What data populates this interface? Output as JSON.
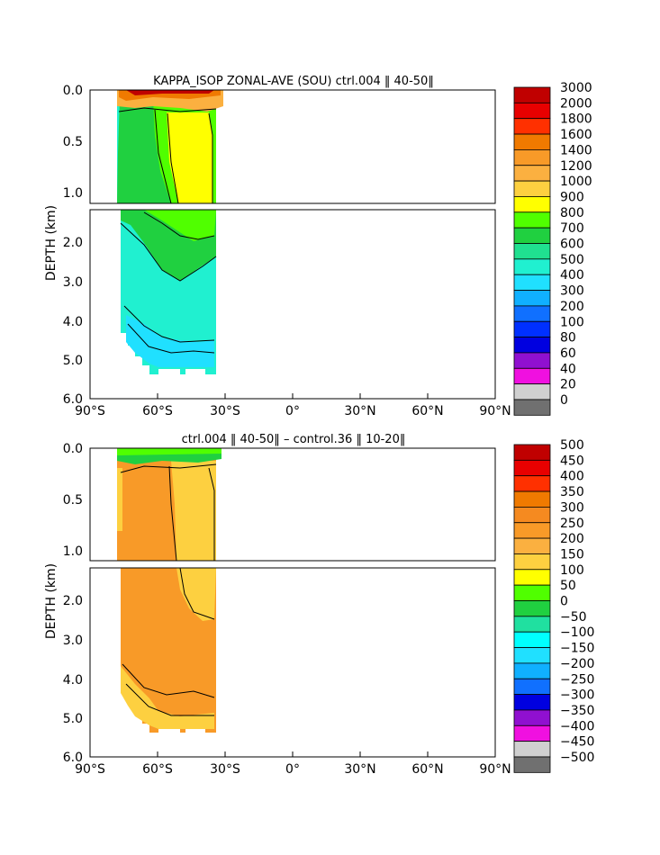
{
  "chart_data": [
    {
      "type": "heatmap",
      "title": "KAPPA_ISOP ZONAL-AVE (SOU) ctrl.004 ‖ 40-50‖",
      "ylabel": "DEPTH (km)",
      "x_ticks": [
        "90°S",
        "60°S",
        "30°S",
        "0°",
        "30°N",
        "60°N",
        "90°N"
      ],
      "y_ticks_upper": [
        "0.0",
        "0.5",
        "1.0"
      ],
      "y_ticks_lower": [
        "2.0",
        "3.0",
        "4.0",
        "5.0",
        "6.0"
      ],
      "xlim": [
        -90,
        90
      ],
      "ylim": [
        6.0,
        0.0
      ],
      "colorbar_levels": [
        "3000",
        "2000",
        "1800",
        "1600",
        "1400",
        "1200",
        "1000",
        "900",
        "800",
        "700",
        "600",
        "500",
        "400",
        "300",
        "200",
        "100",
        "80",
        "60",
        "40",
        "20",
        "0"
      ],
      "colorbar_colors": [
        "#c00000",
        "#e80000",
        "#ff3000",
        "#f07a00",
        "#f89a28",
        "#fbb040",
        "#fdd040",
        "#ffff00",
        "#50ff00",
        "#20d040",
        "#20e090",
        "#20f0d0",
        "#20e0ff",
        "#10b0ff",
        "#1070ff",
        "#0030ff",
        "#0000e0",
        "#9010d0",
        "#f010e0",
        "#d0d0d0",
        "#707070"
      ],
      "regions": [
        {
          "value": 500,
          "lat": [
            -76,
            -34
          ],
          "depth": [
            0.0,
            5.4
          ]
        },
        {
          "value": 600,
          "lat": [
            -75,
            -34
          ],
          "depth": [
            0.1,
            2.4
          ]
        },
        {
          "value": 800,
          "lat": [
            -60,
            -34
          ],
          "depth": [
            0.1,
            1.9
          ]
        },
        {
          "value": 900,
          "lat": [
            -57,
            -36
          ],
          "depth": [
            0.2,
            1.1
          ]
        },
        {
          "value": 1200,
          "lat": [
            -76,
            -34
          ],
          "depth": [
            0.0,
            0.12
          ]
        },
        {
          "value": 3000,
          "lat": [
            -70,
            -34
          ],
          "depth": [
            0.0,
            0.03
          ]
        }
      ]
    },
    {
      "type": "heatmap",
      "title": "ctrl.004 ‖ 40-50‖ – control.36 ‖ 10-20‖",
      "ylabel": "DEPTH (km)",
      "x_ticks": [
        "90°S",
        "60°S",
        "30°S",
        "0°",
        "30°N",
        "60°N",
        "90°N"
      ],
      "y_ticks_upper": [
        "0.0",
        "0.5",
        "1.0"
      ],
      "y_ticks_lower": [
        "2.0",
        "3.0",
        "4.0",
        "5.0",
        "6.0"
      ],
      "xlim": [
        -90,
        90
      ],
      "ylim": [
        6.0,
        0.0
      ],
      "colorbar_levels": [
        "500",
        "450",
        "400",
        "350",
        "300",
        "250",
        "200",
        "150",
        "100",
        "50",
        "0",
        "−50",
        "−100",
        "−150",
        "−200",
        "−250",
        "−300",
        "−350",
        "−400",
        "−450",
        "−500"
      ],
      "colorbar_colors": [
        "#c00000",
        "#e80000",
        "#ff3000",
        "#f07a00",
        "#f58a20",
        "#f89a28",
        "#fbb040",
        "#fdd040",
        "#ffff00",
        "#50ff00",
        "#20d040",
        "#20e0a0",
        "#00ffff",
        "#20e0ff",
        "#10b0ff",
        "#1070ff",
        "#0000e0",
        "#9010d0",
        "#f010e0",
        "#d0d0d0",
        "#707070"
      ],
      "regions": [
        {
          "value": 275,
          "lat": [
            -76,
            -34
          ],
          "depth": [
            0.0,
            5.4
          ]
        },
        {
          "value": 175,
          "lat": [
            -50,
            -34
          ],
          "depth": [
            0.1,
            1.9
          ]
        },
        {
          "value": 75,
          "lat": [
            -76,
            -34
          ],
          "depth": [
            0.0,
            0.07
          ]
        }
      ]
    }
  ]
}
